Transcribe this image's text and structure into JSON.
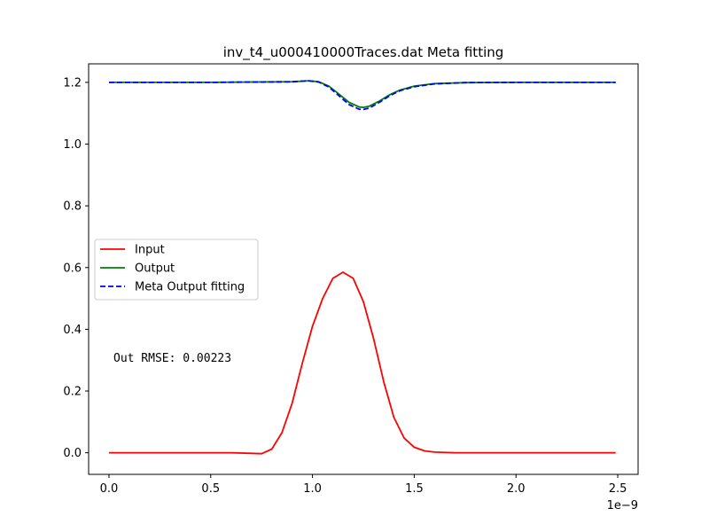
{
  "chart_data": {
    "type": "line",
    "title": "inv_t4_u000410000Traces.dat Meta fitting",
    "xlabel": "",
    "ylabel": "",
    "x_offset_label": "1e−9",
    "xlim": [
      -0.1,
      2.6
    ],
    "ylim": [
      -0.07,
      1.26
    ],
    "x_ticks": [
      0.0,
      0.5,
      1.0,
      1.5,
      2.0,
      2.5
    ],
    "x_tick_labels": [
      "0.0",
      "0.5",
      "1.0",
      "1.5",
      "2.0",
      "2.5"
    ],
    "y_ticks": [
      0.0,
      0.2,
      0.4,
      0.6,
      0.8,
      1.0,
      1.2
    ],
    "y_tick_labels": [
      "0.0",
      "0.2",
      "0.4",
      "0.6",
      "0.8",
      "1.0",
      "1.2"
    ],
    "grid": false,
    "legend": {
      "placement": "center-left"
    },
    "annotation": "Out RMSE: 0.00223",
    "series": [
      {
        "name": "Input",
        "color": "#ff0000",
        "style": "solid",
        "x": [
          0.0,
          0.3,
          0.6,
          0.7,
          0.75,
          0.8,
          0.85,
          0.9,
          0.95,
          1.0,
          1.05,
          1.1,
          1.15,
          1.2,
          1.25,
          1.3,
          1.35,
          1.4,
          1.45,
          1.5,
          1.55,
          1.6,
          1.7,
          2.0,
          2.49
        ],
        "y": [
          0.0,
          0.0,
          0.0,
          -0.002,
          -0.003,
          0.012,
          0.065,
          0.16,
          0.29,
          0.41,
          0.5,
          0.565,
          0.585,
          0.565,
          0.49,
          0.37,
          0.23,
          0.115,
          0.048,
          0.018,
          0.006,
          0.002,
          0.0,
          0.0,
          0.0
        ]
      },
      {
        "name": "Output",
        "color": "#008000",
        "style": "solid",
        "x": [
          0.0,
          0.5,
          0.9,
          0.98,
          1.03,
          1.08,
          1.13,
          1.18,
          1.23,
          1.25,
          1.28,
          1.33,
          1.38,
          1.43,
          1.5,
          1.6,
          1.75,
          2.0,
          2.49
        ],
        "y": [
          1.2,
          1.2,
          1.202,
          1.205,
          1.202,
          1.188,
          1.162,
          1.135,
          1.12,
          1.119,
          1.123,
          1.14,
          1.16,
          1.175,
          1.188,
          1.196,
          1.199,
          1.2,
          1.2
        ]
      },
      {
        "name": "Meta Output fitting",
        "color": "#0000ff",
        "style": "dashed",
        "x": [
          0.0,
          0.5,
          0.9,
          0.98,
          1.03,
          1.08,
          1.13,
          1.18,
          1.23,
          1.25,
          1.28,
          1.33,
          1.38,
          1.43,
          1.5,
          1.6,
          1.75,
          2.0,
          2.49
        ],
        "y": [
          1.2,
          1.2,
          1.202,
          1.205,
          1.201,
          1.185,
          1.157,
          1.128,
          1.113,
          1.112,
          1.117,
          1.136,
          1.157,
          1.173,
          1.186,
          1.195,
          1.199,
          1.2,
          1.2
        ]
      }
    ]
  }
}
